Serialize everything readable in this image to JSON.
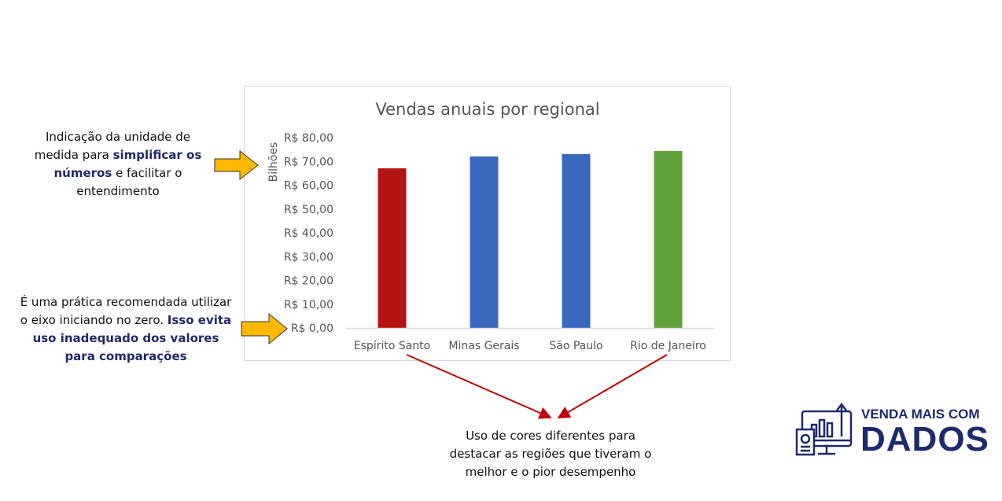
{
  "chart_data": {
    "type": "bar",
    "title": "Vendas anuais por regional",
    "ylabel": "Bilhões",
    "categories": [
      "Espírito Santo",
      "Minas Gerais",
      "São Paulo",
      "Rio de Janeiro"
    ],
    "values": [
      67.1,
      72.1,
      73.1,
      74.4
    ],
    "bar_colors": [
      "#b51313",
      "#3b68bf",
      "#3b68bf",
      "#62a23c"
    ],
    "ylim": [
      0,
      80
    ],
    "yticks": [
      0,
      10,
      20,
      30,
      40,
      50,
      60,
      70,
      80
    ],
    "ytick_labels": [
      "R$ 0,00",
      "R$ 10,00",
      "R$ 20,00",
      "R$ 30,00",
      "R$ 40,00",
      "R$ 50,00",
      "R$ 60,00",
      "R$ 70,00",
      "R$ 80,00"
    ],
    "grid": false,
    "legend": "none"
  },
  "annotations": {
    "unit_note": {
      "a": "Indicação da unidade de medida para ",
      "b": "simplificar os números",
      "c": " e facilitar o entendimento"
    },
    "zero_note": {
      "a": "É uma prática recomendada utilizar o eixo iniciando no zero. ",
      "b": "Isso evita uso inadequado dos valores para comparações"
    },
    "color_note": "Uso de cores diferentes para destacar as regiões que tiveram o melhor e o pior desempenho"
  },
  "logo": {
    "line1": "VENDA MAIS COM",
    "line2": "DADOS",
    "color": "#1c2a6e"
  },
  "arrow_color": "#ffb800",
  "pointer_color": "#c00000"
}
